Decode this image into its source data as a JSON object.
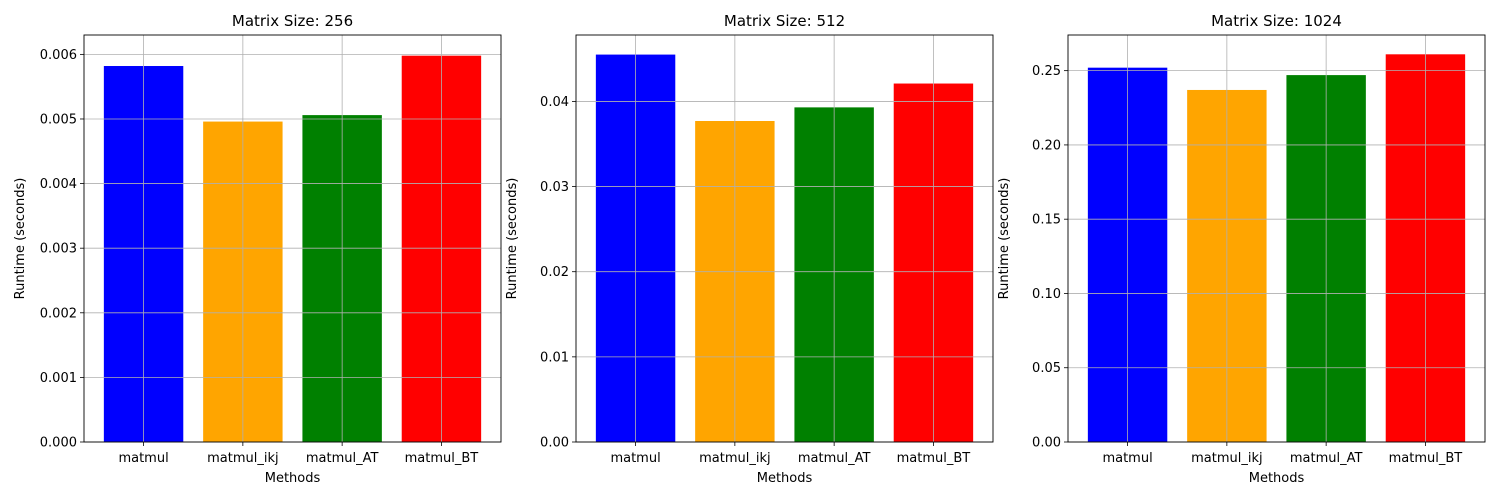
{
  "chart_data": [
    {
      "type": "bar",
      "title": "Matrix Size: 256",
      "xlabel": "Methods",
      "ylabel": "Runtime (seconds)",
      "categories": [
        "matmul",
        "matmul_ikj",
        "matmul_AT",
        "matmul_BT"
      ],
      "values": [
        0.00582,
        0.00496,
        0.00506,
        0.00598
      ],
      "colors": [
        "#0000ff",
        "#ffa500",
        "#008000",
        "#ff0000"
      ],
      "ylim": [
        0,
        0.0063
      ],
      "yticks": [
        0.0,
        0.001,
        0.002,
        0.003,
        0.004,
        0.005,
        0.006
      ],
      "ytick_labels": [
        "0.000",
        "0.001",
        "0.002",
        "0.003",
        "0.004",
        "0.005",
        "0.006"
      ],
      "grid": true
    },
    {
      "type": "bar",
      "title": "Matrix Size: 512",
      "xlabel": "Methods",
      "ylabel": "Runtime (seconds)",
      "categories": [
        "matmul",
        "matmul_ikj",
        "matmul_AT",
        "matmul_BT"
      ],
      "values": [
        0.0455,
        0.0377,
        0.0393,
        0.0421
      ],
      "colors": [
        "#0000ff",
        "#ffa500",
        "#008000",
        "#ff0000"
      ],
      "ylim": [
        0,
        0.0478
      ],
      "yticks": [
        0.0,
        0.01,
        0.02,
        0.03,
        0.04
      ],
      "ytick_labels": [
        "0.00",
        "0.01",
        "0.02",
        "0.03",
        "0.04"
      ],
      "grid": true
    },
    {
      "type": "bar",
      "title": "Matrix Size: 1024",
      "xlabel": "Methods",
      "ylabel": "Runtime (seconds)",
      "categories": [
        "matmul",
        "matmul_ikj",
        "matmul_AT",
        "matmul_BT"
      ],
      "values": [
        0.252,
        0.237,
        0.247,
        0.261
      ],
      "colors": [
        "#0000ff",
        "#ffa500",
        "#008000",
        "#ff0000"
      ],
      "ylim": [
        0,
        0.274
      ],
      "yticks": [
        0.0,
        0.05,
        0.1,
        0.15,
        0.2,
        0.25
      ],
      "ytick_labels": [
        "0.00",
        "0.05",
        "0.10",
        "0.15",
        "0.20",
        "0.25"
      ],
      "grid": true
    }
  ]
}
